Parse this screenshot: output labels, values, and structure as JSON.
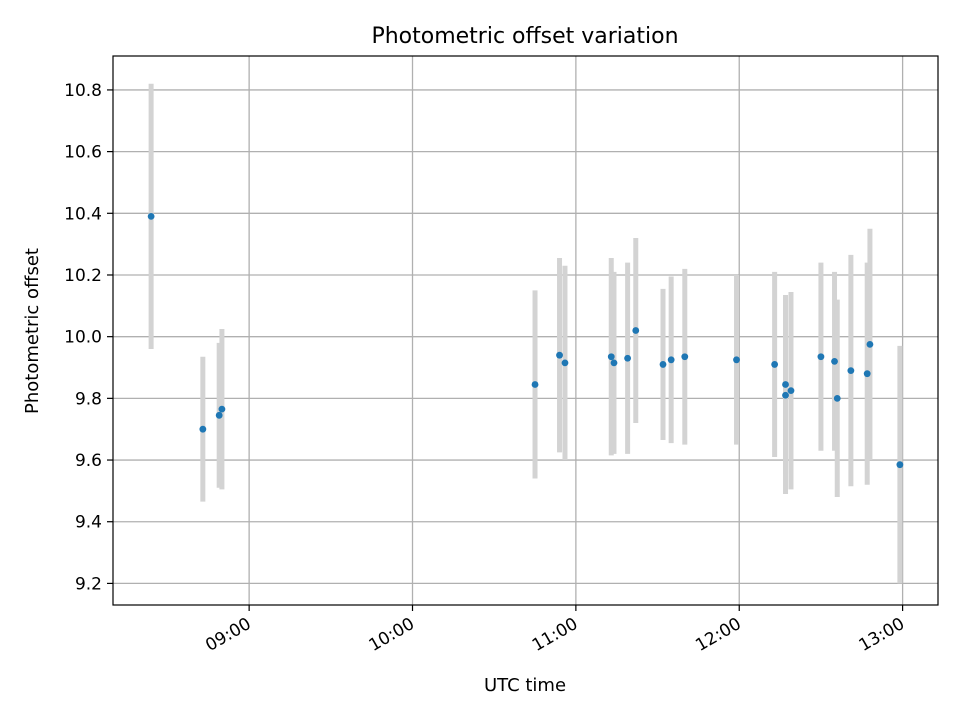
{
  "chart_data": {
    "type": "scatter",
    "title": "Photometric offset variation",
    "xlabel": "UTC time",
    "ylabel": "Photometric offset",
    "x_axis": {
      "scale": "time",
      "range": [
        "08:10",
        "13:13"
      ],
      "ticks": [
        "09:00",
        "10:00",
        "11:00",
        "12:00",
        "13:00"
      ]
    },
    "y_axis": {
      "range": [
        9.13,
        10.91
      ],
      "ticks": [
        "9.2",
        "9.4",
        "9.6",
        "9.8",
        "10.0",
        "10.2",
        "10.4",
        "10.6",
        "10.8"
      ]
    },
    "grid": true,
    "colors": {
      "point": "#1f77b4",
      "errorbar": "#d3d3d3",
      "grid": "#b0b0b0",
      "axes": "#000000"
    },
    "points": [
      {
        "t": "08:24",
        "y": 10.39,
        "err": 0.43
      },
      {
        "t": "08:43",
        "y": 9.7,
        "err": 0.235
      },
      {
        "t": "08:49",
        "y": 9.745,
        "err": 0.235
      },
      {
        "t": "08:50",
        "y": 9.765,
        "err": 0.26
      },
      {
        "t": "10:45",
        "y": 9.845,
        "err": 0.305
      },
      {
        "t": "10:54",
        "y": 9.94,
        "err": 0.315
      },
      {
        "t": "10:56",
        "y": 9.915,
        "err": 0.315
      },
      {
        "t": "11:13",
        "y": 9.935,
        "err": 0.32
      },
      {
        "t": "11:14",
        "y": 9.915,
        "err": 0.295
      },
      {
        "t": "11:19",
        "y": 9.93,
        "err": 0.31
      },
      {
        "t": "11:22",
        "y": 10.02,
        "err": 0.3
      },
      {
        "t": "11:32",
        "y": 9.91,
        "err": 0.245
      },
      {
        "t": "11:35",
        "y": 9.925,
        "err": 0.27
      },
      {
        "t": "11:40",
        "y": 9.935,
        "err": 0.285
      },
      {
        "t": "11:59",
        "y": 9.925,
        "err": 0.275
      },
      {
        "t": "12:13",
        "y": 9.91,
        "err": 0.3
      },
      {
        "t": "12:17",
        "y": 9.845,
        "err": 0.29
      },
      {
        "t": "12:17",
        "y": 9.81,
        "err": 0.32
      },
      {
        "t": "12:19",
        "y": 9.825,
        "err": 0.32
      },
      {
        "t": "12:30",
        "y": 9.935,
        "err": 0.305
      },
      {
        "t": "12:35",
        "y": 9.92,
        "err": 0.29
      },
      {
        "t": "12:36",
        "y": 9.8,
        "err": 0.32
      },
      {
        "t": "12:41",
        "y": 9.89,
        "err": 0.375
      },
      {
        "t": "12:47",
        "y": 9.88,
        "err": 0.36
      },
      {
        "t": "12:48",
        "y": 9.975,
        "err": 0.375
      },
      {
        "t": "12:59",
        "y": 9.585,
        "err": 0.385
      }
    ]
  }
}
